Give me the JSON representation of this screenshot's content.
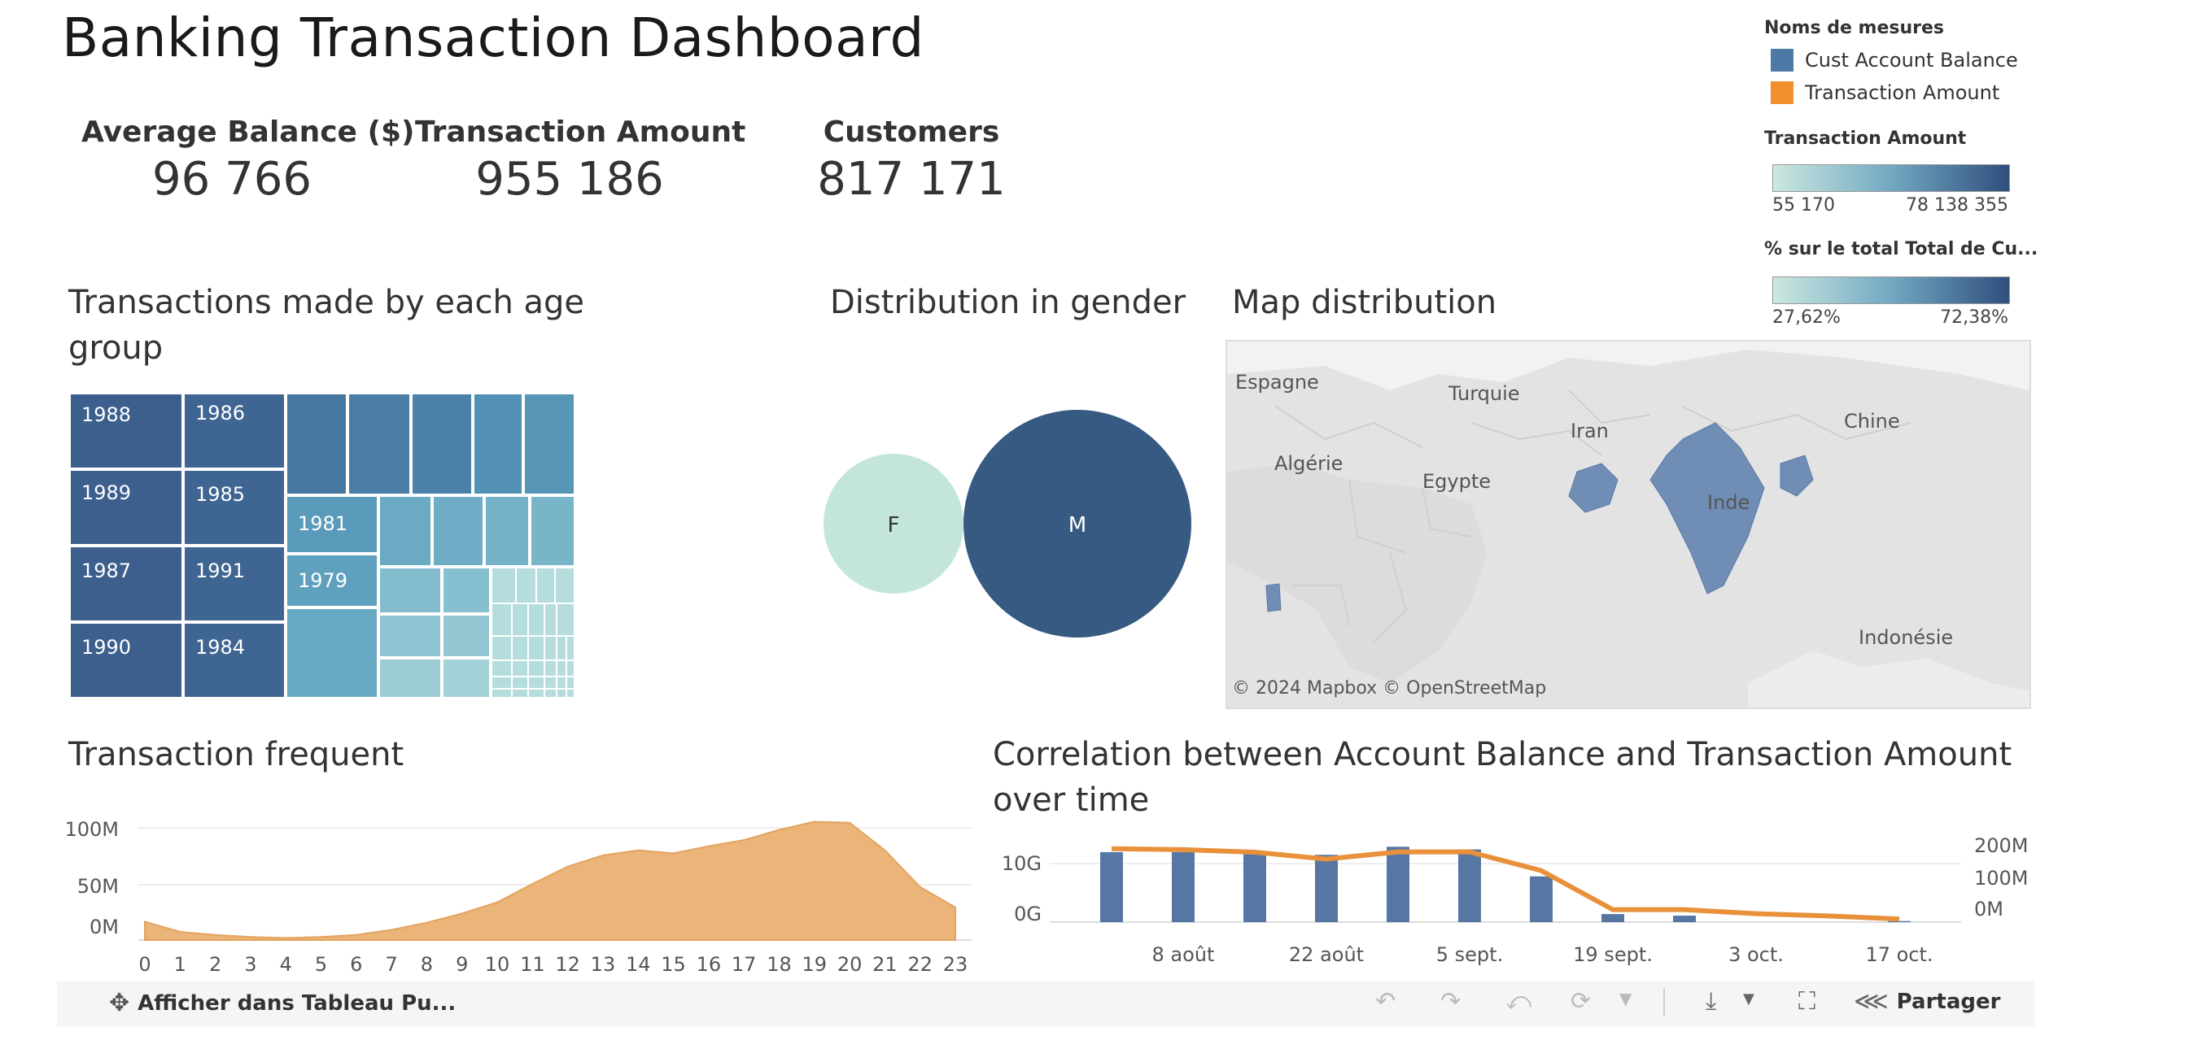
{
  "dashboard": {
    "title": "Banking Transaction Dashboard"
  },
  "kpis": [
    {
      "label": "Average Balance ($)",
      "value": "96 766"
    },
    {
      "label": "Transaction Amount",
      "value": "955 186"
    },
    {
      "label": "Customers",
      "value": "817 171"
    }
  ],
  "legend": {
    "measures_title": "Noms de mesures",
    "measures": [
      {
        "label": "Cust Account Balance",
        "color": "#4e79a7"
      },
      {
        "label": "Transaction Amount",
        "color": "#f28e2b"
      }
    ],
    "transaction_amount_title": "Transaction Amount",
    "transaction_amount_min": "55 170",
    "transaction_amount_max": "78 138 355",
    "pct_title": "% sur le total Total de Cu...",
    "pct_min": "27,62%",
    "pct_max": "72,38%"
  },
  "treemap": {
    "title": "Transactions made by each age group",
    "labels": [
      "1988",
      "1989",
      "1987",
      "1990",
      "1986",
      "1985",
      "1991",
      "1984",
      "1981",
      "1979"
    ]
  },
  "gender": {
    "title": "Distribution in gender",
    "female_label": "F",
    "male_label": "M"
  },
  "map": {
    "title": "Map distribution",
    "labels": [
      "Espagne",
      "Turquie",
      "Iran",
      "Chine",
      "Algérie",
      "Egypte",
      "Inde",
      "Indonésie"
    ],
    "attribution": "© 2024 Mapbox  © OpenStreetMap"
  },
  "frequency": {
    "title": "Transaction frequent",
    "y_ticks": [
      "100M",
      "50M",
      "0M"
    ],
    "x_ticks": [
      "0",
      "1",
      "2",
      "3",
      "4",
      "5",
      "6",
      "7",
      "8",
      "9",
      "10",
      "11",
      "12",
      "13",
      "14",
      "15",
      "16",
      "17",
      "18",
      "19",
      "20",
      "21",
      "22",
      "23"
    ]
  },
  "correlation": {
    "title": "Correlation between Account Balance and Transaction Amount over time",
    "left_ticks": [
      "10G",
      "0G"
    ],
    "right_ticks": [
      "200M",
      "100M",
      "0M"
    ],
    "x_ticks": [
      "8 août",
      "22 août",
      "5 sept.",
      "19 sept.",
      "3 oct.",
      "17 oct."
    ]
  },
  "chart_data": [
    {
      "type": "area",
      "x": [
        0,
        1,
        2,
        3,
        4,
        5,
        6,
        7,
        8,
        9,
        10,
        11,
        12,
        13,
        14,
        15,
        16,
        17,
        18,
        19,
        20,
        21,
        22,
        23
      ],
      "y_millions": [
        18,
        8,
        5,
        3,
        2,
        3,
        5,
        10,
        17,
        26,
        37,
        55,
        72,
        83,
        88,
        85,
        92,
        98,
        108,
        116,
        115,
        88,
        52,
        32
      ],
      "ylim": [
        0,
        120
      ]
    },
    {
      "type": "bar",
      "series": [
        {
          "name": "Cust Account Balance",
          "x": [
            1,
            2,
            3,
            4,
            5,
            6,
            7,
            8,
            9,
            10,
            11,
            12
          ],
          "values_G": [
            13,
            13,
            13,
            12.5,
            14,
            13.5,
            8.5,
            1.5,
            1.2,
            0,
            0,
            0.2
          ]
        },
        {
          "name": "Transaction Amount",
          "x": [
            1,
            2,
            3,
            4,
            5,
            6,
            7,
            8,
            9,
            10,
            11,
            12
          ],
          "values_M": [
            235,
            232,
            224,
            202,
            225,
            225,
            165,
            40,
            40,
            27,
            20,
            10
          ]
        }
      ]
    }
  ],
  "toolbar": {
    "view_label": "Afficher dans Tableau Pu...",
    "share_label": "Partager"
  }
}
